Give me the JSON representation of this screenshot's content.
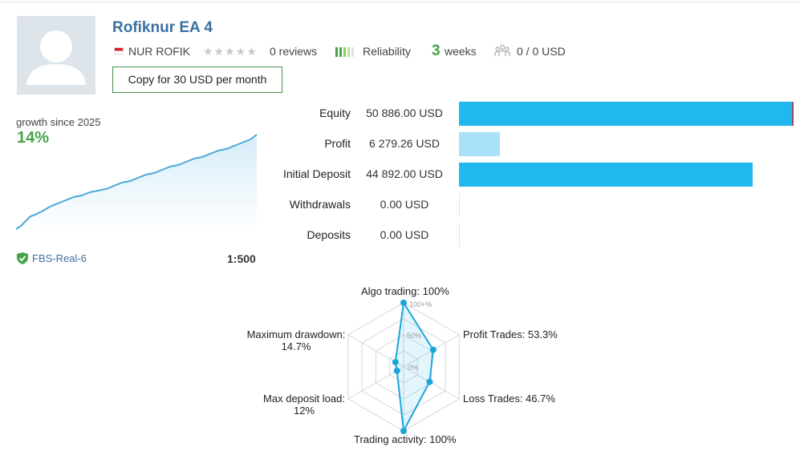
{
  "signal": {
    "title": "Rofiknur EA 4",
    "author": "NUR ROFIK",
    "country_flag": "indonesia-flag",
    "reviews": "0 reviews",
    "reliability_label": "Reliability",
    "weeks_number": "3",
    "weeks_label": "weeks",
    "subscribers": "0 / 0 USD",
    "copy_button": "Copy for 30 USD per month"
  },
  "growth": {
    "label": "growth since 2025",
    "value": "14%"
  },
  "account": {
    "server": "FBS-Real-6",
    "leverage": "1:500"
  },
  "stats": [
    {
      "label": "Equity",
      "value": "50 886.00 USD",
      "amount": 50886.0,
      "color": "#21b8ef"
    },
    {
      "label": "Profit",
      "value": "6 279.26 USD",
      "amount": 6279.26,
      "color": "#a9e1f9"
    },
    {
      "label": "Initial Deposit",
      "value": "44 892.00 USD",
      "amount": 44892.0,
      "color": "#21b8ef"
    },
    {
      "label": "Withdrawals",
      "value": "0.00 USD",
      "amount": 0,
      "color": "#21b8ef"
    },
    {
      "label": "Deposits",
      "value": "0.00 USD",
      "amount": 0,
      "color": "#21b8ef"
    }
  ],
  "radar": {
    "algo": "Algo trading: 100%",
    "profit_trades": "Profit Trades: 53.3%",
    "loss_trades": "Loss Trades: 46.7%",
    "trading_activity": "Trading activity: 100%",
    "max_deposit_load_line1": "Max deposit load:",
    "max_deposit_load_line2": "12%",
    "max_drawdown_line1": "Maximum drawdown:",
    "max_drawdown_line2": "14.7%",
    "scale_100": "100+%",
    "scale_50": "50%",
    "scale_0": "0%",
    "values": [
      100,
      53.3,
      46.7,
      100,
      12,
      14.7
    ]
  },
  "colors": {
    "accent_blue": "#21b8ef",
    "green": "#46a54a",
    "title_blue": "#3b6fa0"
  }
}
